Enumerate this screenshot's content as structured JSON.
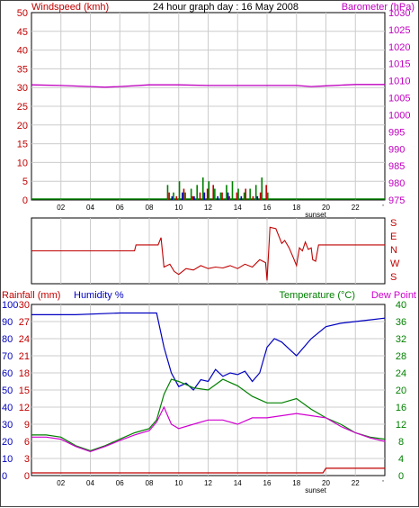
{
  "header": {
    "left_title": "Windspeed (kmh)",
    "center_title": "24 hour graph day : 16 May 2008",
    "right_title": "Barometer (hPa)"
  },
  "colors": {
    "wind": "#c00000",
    "wind_gust": "#008000",
    "wind_mid": "#0000c0",
    "baro": "#c000c0",
    "dir": "#c00000",
    "humidity": "#0000c0",
    "temp": "#008000",
    "dew": "#d000d0",
    "rain": "#c00000",
    "grid": "#cccccc"
  },
  "x_ticks": [
    "02",
    "04",
    "06",
    "08",
    "10",
    "12",
    "14",
    "16",
    "18",
    "20",
    "22"
  ],
  "x_end_tick": "'",
  "sunset_label": "sunset",
  "chart_data": [
    {
      "type": "line",
      "title": "24 hour graph day : 16 May 2008",
      "ylabel": "Windspeed (kmh)",
      "ylabel_right": "Barometer (hPa)",
      "ylim": [
        0,
        50
      ],
      "ylim_right": [
        975,
        1030
      ],
      "yticks": [
        "0",
        "5",
        "10",
        "15",
        "20",
        "25",
        "30",
        "35",
        "40",
        "45",
        "50"
      ],
      "yticks_right": [
        "975",
        "980",
        "985",
        "990",
        "995",
        "1000",
        "1005",
        "1010",
        "1015",
        "1020",
        "1025",
        "1030"
      ],
      "xlim_hours": [
        0,
        24
      ],
      "series": [
        {
          "name": "Barometer (hPa)",
          "axis": "right",
          "x": [
            0,
            2,
            4,
            5,
            6,
            8,
            10,
            12,
            14,
            16,
            18,
            19,
            20,
            22,
            24
          ],
          "y": [
            1008.8,
            1008.6,
            1008.3,
            1008.1,
            1008.3,
            1008.8,
            1008.8,
            1008.6,
            1008.6,
            1008.6,
            1008.6,
            1008.3,
            1008.5,
            1008.9,
            1008.9
          ]
        },
        {
          "name": "Wind gust",
          "type": "bar",
          "x": [
            9.2,
            9.6,
            10.0,
            10.4,
            10.8,
            11.2,
            11.6,
            12.0,
            12.4,
            12.8,
            13.2,
            13.6,
            14.0,
            14.4,
            14.8,
            15.2,
            15.6,
            16.0
          ],
          "y": [
            4,
            2,
            5,
            2,
            3,
            4,
            6,
            5,
            3,
            2,
            4,
            5,
            3,
            2,
            3,
            4,
            6,
            2
          ]
        },
        {
          "name": "Wind avg",
          "type": "bar",
          "x": [
            9.3,
            9.8,
            10.3,
            10.9,
            11.4,
            11.9,
            12.3,
            12.9,
            13.4,
            13.9,
            14.5,
            15.0,
            15.5,
            15.9
          ],
          "y": [
            2,
            1,
            3,
            1,
            2,
            3,
            4,
            2,
            1,
            2,
            3,
            1,
            2,
            4
          ]
        },
        {
          "name": "Wind mean",
          "type": "bar",
          "x": [
            9.5,
            10.2,
            11.0,
            11.7,
            12.6,
            13.3,
            14.2,
            15.3
          ],
          "y": [
            1,
            2,
            1,
            2,
            1,
            2,
            1,
            1
          ]
        }
      ]
    },
    {
      "type": "line",
      "title": "",
      "yticks_right": [
        "S",
        "E",
        "N",
        "W",
        "S"
      ],
      "xlim_hours": [
        0,
        24
      ],
      "ylim": [
        0,
        360
      ],
      "series": [
        {
          "name": "Wind direction",
          "x": [
            0,
            7,
            7.1,
            8.6,
            8.8,
            9.0,
            9.4,
            9.7,
            10.0,
            10.5,
            11.0,
            11.5,
            12.0,
            12.5,
            13.0,
            13.5,
            14.0,
            14.5,
            15.0,
            15.5,
            15.9,
            16.0,
            16.2,
            16.6,
            17.0,
            17.2,
            17.5,
            17.8,
            18.0,
            18.2,
            18.4,
            18.6,
            18.8,
            19.0,
            19.1,
            19.3,
            19.5,
            24
          ],
          "y": [
            90,
            90,
            70,
            70,
            45,
            145,
            135,
            160,
            170,
            150,
            155,
            140,
            150,
            145,
            148,
            140,
            150,
            135,
            145,
            120,
            130,
            190,
            10,
            15,
            65,
            55,
            80,
            115,
            140,
            80,
            90,
            60,
            85,
            80,
            120,
            125,
            70,
            70
          ]
        }
      ]
    },
    {
      "type": "line",
      "title": "",
      "ylabel": "Rainfall (mm)",
      "ylabel_humidity": "Humidity %",
      "ylabel_right": "Temperature (°C)",
      "ylabel_right2": "Dew Point",
      "ylim_humidity": [
        0,
        100
      ],
      "ylim_temp": [
        0,
        40
      ],
      "yticks_rain": [
        "0",
        "3",
        "6",
        "9",
        "12",
        "15",
        "18",
        "21",
        "24",
        "27",
        "30"
      ],
      "yticks_humidity": [
        "0",
        "10",
        "20",
        "30",
        "40",
        "50",
        "60",
        "70",
        "80",
        "90",
        "100"
      ],
      "yticks_temp": [
        "0",
        "4",
        "8",
        "12",
        "16",
        "20",
        "24",
        "28",
        "32",
        "36",
        "40"
      ],
      "xlim_hours": [
        0,
        24
      ],
      "series": [
        {
          "name": "Humidity %",
          "axis": "humidity",
          "x": [
            0,
            3,
            6,
            7.5,
            8.5,
            9.0,
            9.5,
            10,
            10.5,
            11,
            11.5,
            12,
            12.5,
            13,
            13.5,
            14,
            14.5,
            15,
            15.5,
            16,
            16.5,
            17,
            17.5,
            18,
            19,
            20,
            21,
            22,
            23,
            24
          ],
          "y": [
            94,
            94,
            95,
            95,
            95,
            75,
            60,
            52,
            54,
            50,
            56,
            55,
            62,
            58,
            60,
            59,
            61,
            55,
            60,
            75,
            80,
            78,
            74,
            70,
            80,
            87,
            89,
            90,
            91,
            92
          ]
        },
        {
          "name": "Temperature (°C)",
          "axis": "temp",
          "x": [
            0,
            1,
            2,
            3,
            4,
            5,
            6,
            7,
            8,
            8.5,
            9,
            9.5,
            10,
            11,
            12,
            13,
            14,
            15,
            16,
            17,
            18,
            19,
            20,
            21,
            22,
            23,
            24
          ],
          "y": [
            9.5,
            9.5,
            9,
            7,
            5.8,
            7,
            8.5,
            10,
            11,
            13,
            19,
            22.5,
            22,
            20.5,
            20,
            22.5,
            21,
            18.5,
            17,
            17,
            18,
            15.5,
            13.5,
            12,
            10,
            9,
            8.5
          ]
        },
        {
          "name": "Dew Point",
          "axis": "temp",
          "x": [
            0,
            1,
            2,
            3,
            4,
            5,
            6,
            7,
            8,
            8.5,
            9,
            9.5,
            10,
            11,
            12,
            13,
            14,
            15,
            16,
            17,
            18,
            19,
            20,
            21,
            22,
            23,
            24
          ],
          "y": [
            9,
            9,
            8.5,
            6.8,
            5.6,
            6.8,
            8.2,
            9.5,
            10.5,
            12.5,
            16,
            12,
            11,
            12,
            13,
            13,
            12,
            13.5,
            13.5,
            14,
            14.5,
            14,
            13.5,
            11.5,
            10,
            8.8,
            8
          ]
        },
        {
          "name": "Rainfall (mm)",
          "axis": "rain",
          "x": [
            0,
            19.8,
            20,
            24
          ],
          "y": [
            0,
            0,
            0.4,
            0.4
          ]
        }
      ]
    }
  ],
  "panel3_labels": {
    "rain": "Rainfall (mm)",
    "humidity": "Humidity %",
    "temp": "Temperature (°C)",
    "dew": "Dew Point"
  }
}
